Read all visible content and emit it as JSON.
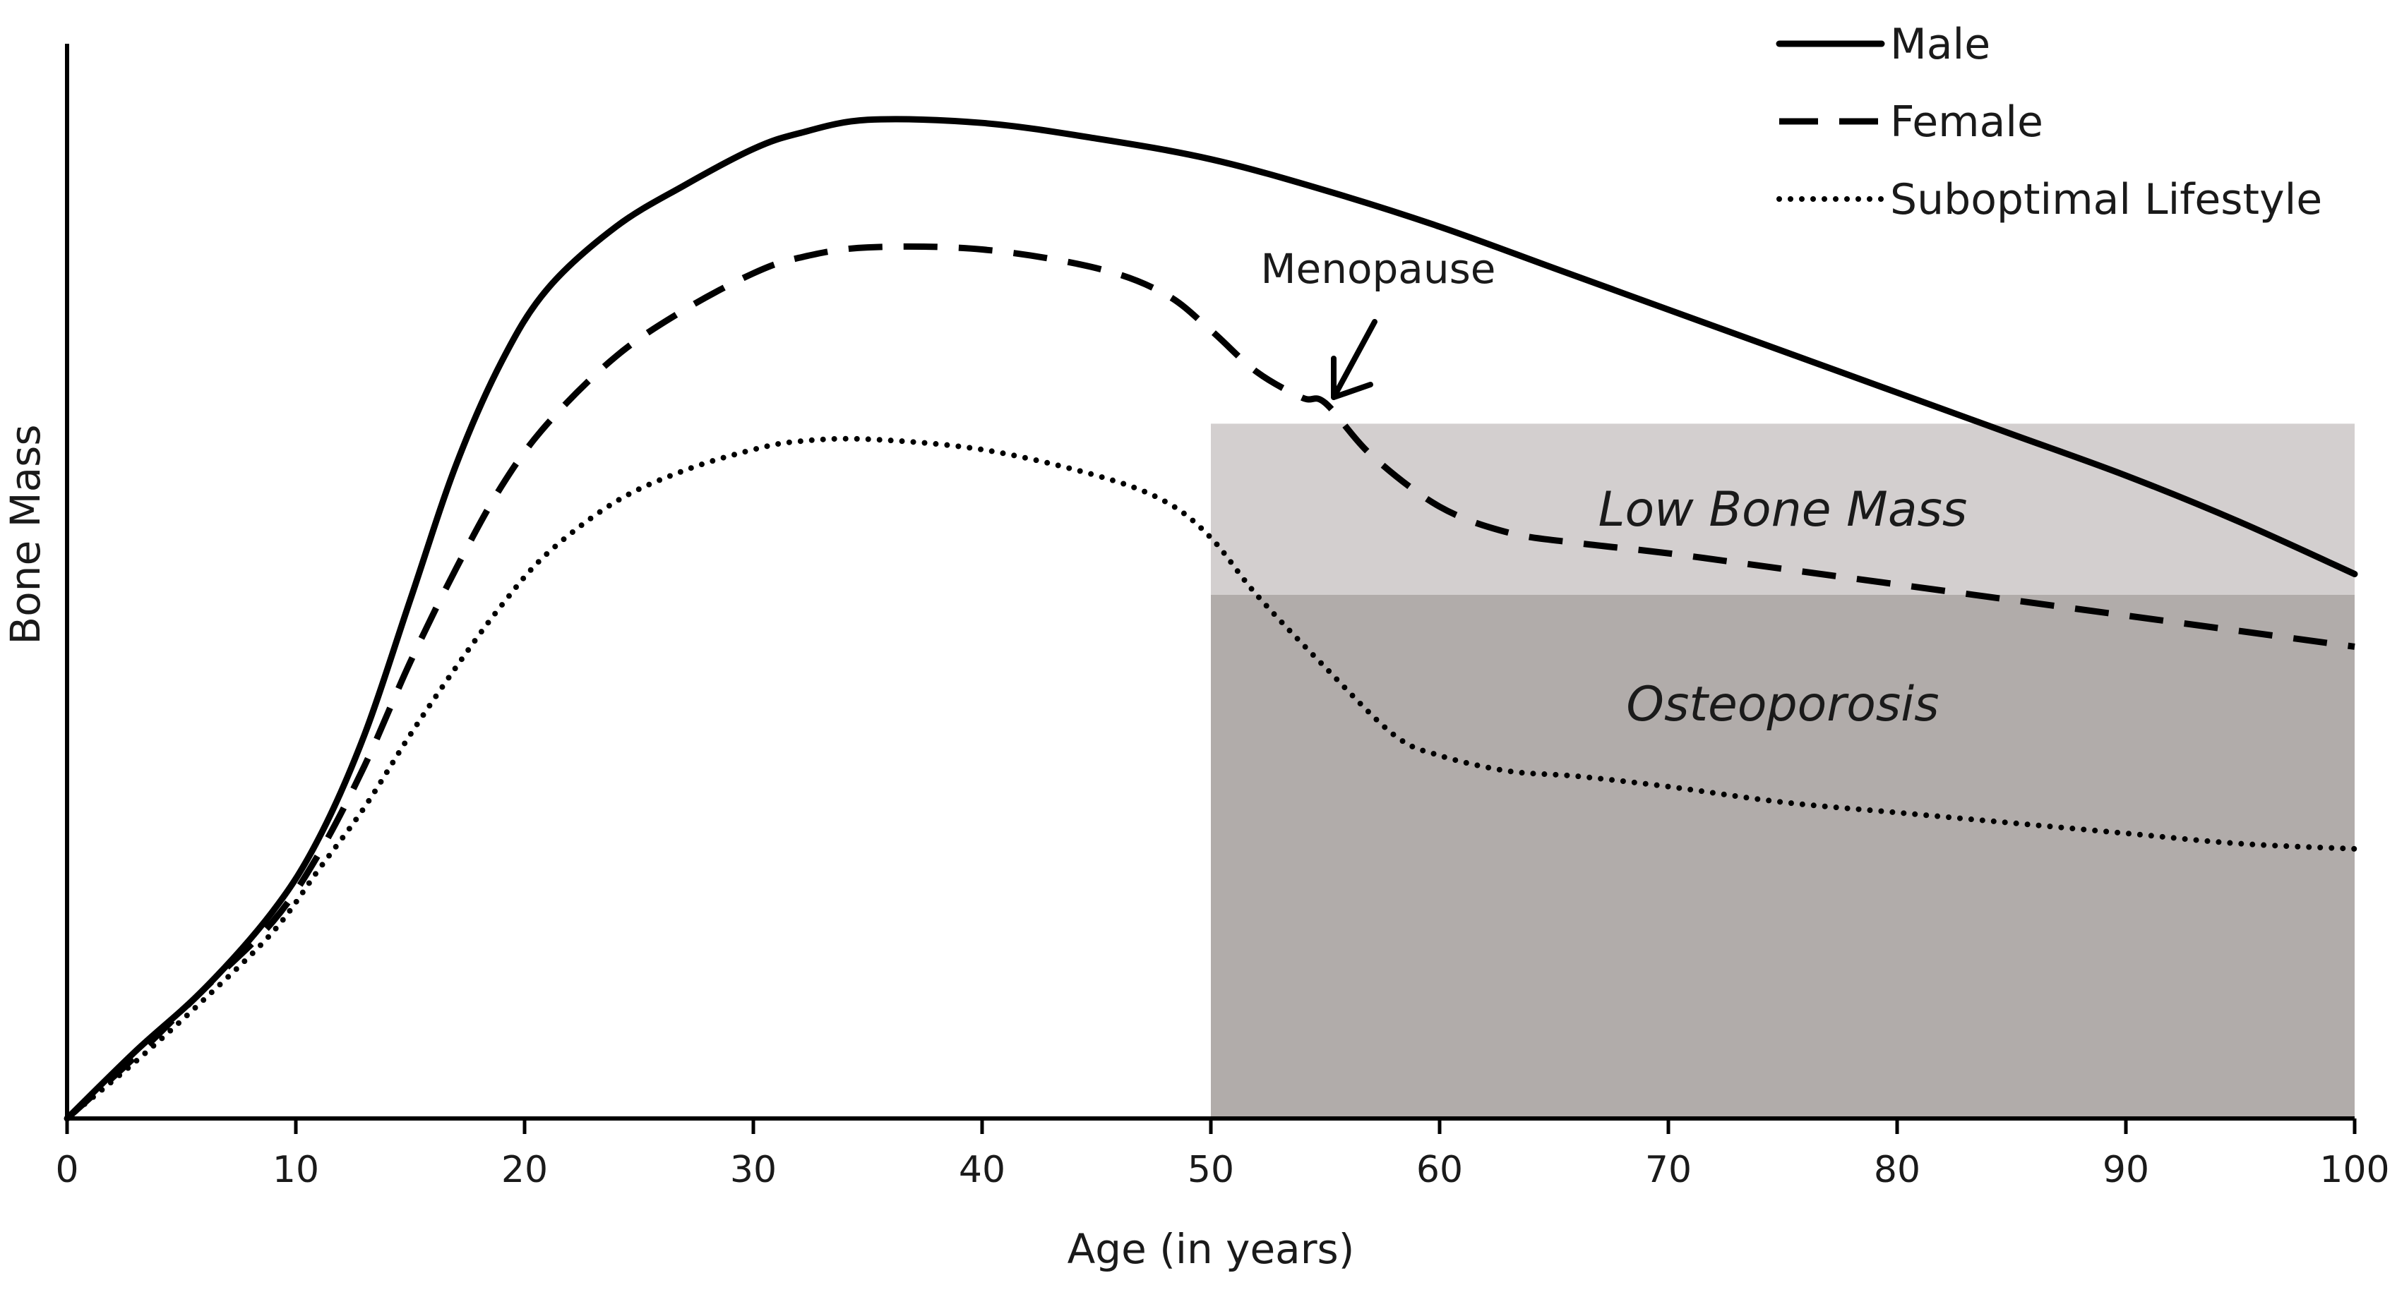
{
  "chart_data": {
    "type": "line",
    "title": "",
    "xlabel": "Age (in years)",
    "ylabel": "Bone Mass",
    "xlim": [
      0,
      100
    ],
    "ylim": [
      0,
      100
    ],
    "x_ticks": [
      0,
      10,
      20,
      30,
      40,
      50,
      60,
      70,
      80,
      90,
      100
    ],
    "x_tick_labels": [
      "0",
      "10",
      "20",
      "30",
      "40",
      "50",
      "60",
      "70",
      "80",
      "90",
      "100"
    ],
    "grid": false,
    "legend_position": "top-right",
    "legend": [
      {
        "name": "Male",
        "style": "solid"
      },
      {
        "name": "Female",
        "style": "dashed"
      },
      {
        "name": "Suboptimal Lifestyle",
        "style": "dotted"
      }
    ],
    "series": [
      {
        "name": "Male",
        "style": "solid",
        "x": [
          0,
          3,
          6,
          9,
          11,
          13,
          15,
          17,
          19,
          21,
          24,
          27,
          30,
          32,
          35,
          40,
          45,
          50,
          55,
          60,
          65,
          70,
          75,
          80,
          85,
          90,
          95,
          100
        ],
        "y": [
          0,
          6.5,
          12.5,
          20,
          27,
          37,
          50,
          63,
          73,
          80,
          86,
          90,
          93.5,
          95,
          96.3,
          96,
          94.5,
          92.5,
          89.5,
          86,
          82,
          78,
          74,
          70,
          66,
          62,
          57.5,
          52.5
        ]
      },
      {
        "name": "Female",
        "style": "dashed",
        "x": [
          0,
          3,
          6,
          9,
          11,
          13,
          15,
          17,
          19,
          21,
          24,
          27,
          30,
          32,
          35,
          40,
          45,
          48,
          50,
          52,
          54,
          55,
          57,
          60,
          63,
          66,
          70,
          75,
          80,
          85,
          90,
          95,
          100
        ],
        "y": [
          0,
          6,
          12.5,
          19,
          25.5,
          34,
          44,
          53,
          61,
          67,
          73.5,
          78,
          81.5,
          83,
          84,
          83.8,
          82,
          79.5,
          76,
          72,
          69.5,
          69,
          64,
          59,
          56.5,
          55.5,
          54.5,
          53,
          51.5,
          50,
          48.5,
          47,
          45.5
        ]
      },
      {
        "name": "Suboptimal Lifestyle",
        "style": "dotted",
        "x": [
          0,
          3,
          6,
          9,
          11,
          13,
          15,
          17,
          19,
          21,
          24,
          27,
          30,
          32,
          35,
          40,
          45,
          48,
          50,
          52,
          55,
          58,
          60,
          63,
          66,
          70,
          75,
          80,
          85,
          90,
          95,
          100
        ],
        "y": [
          0,
          5.5,
          11.5,
          18,
          24,
          30,
          37,
          43.5,
          49.5,
          54.5,
          59.5,
          62.5,
          64.5,
          65.3,
          65.5,
          64.5,
          62,
          59.5,
          56,
          50.5,
          43.5,
          37,
          35,
          33.5,
          33,
          32,
          30.5,
          29.5,
          28.5,
          27.5,
          26.5,
          26
        ]
      }
    ],
    "regions": [
      {
        "label": "Low Bone Mass",
        "x_range": [
          50,
          100
        ],
        "y_range": [
          50.5,
          67
        ],
        "color": "#d3cfcf"
      },
      {
        "label": "Osteoporosis",
        "x_range": [
          50,
          100
        ],
        "y_range": [
          0,
          50.5
        ],
        "color": "#b1acaa"
      }
    ],
    "annotations": [
      {
        "text": "Menopause",
        "x": 55,
        "y": 69,
        "arrow": true
      }
    ]
  }
}
